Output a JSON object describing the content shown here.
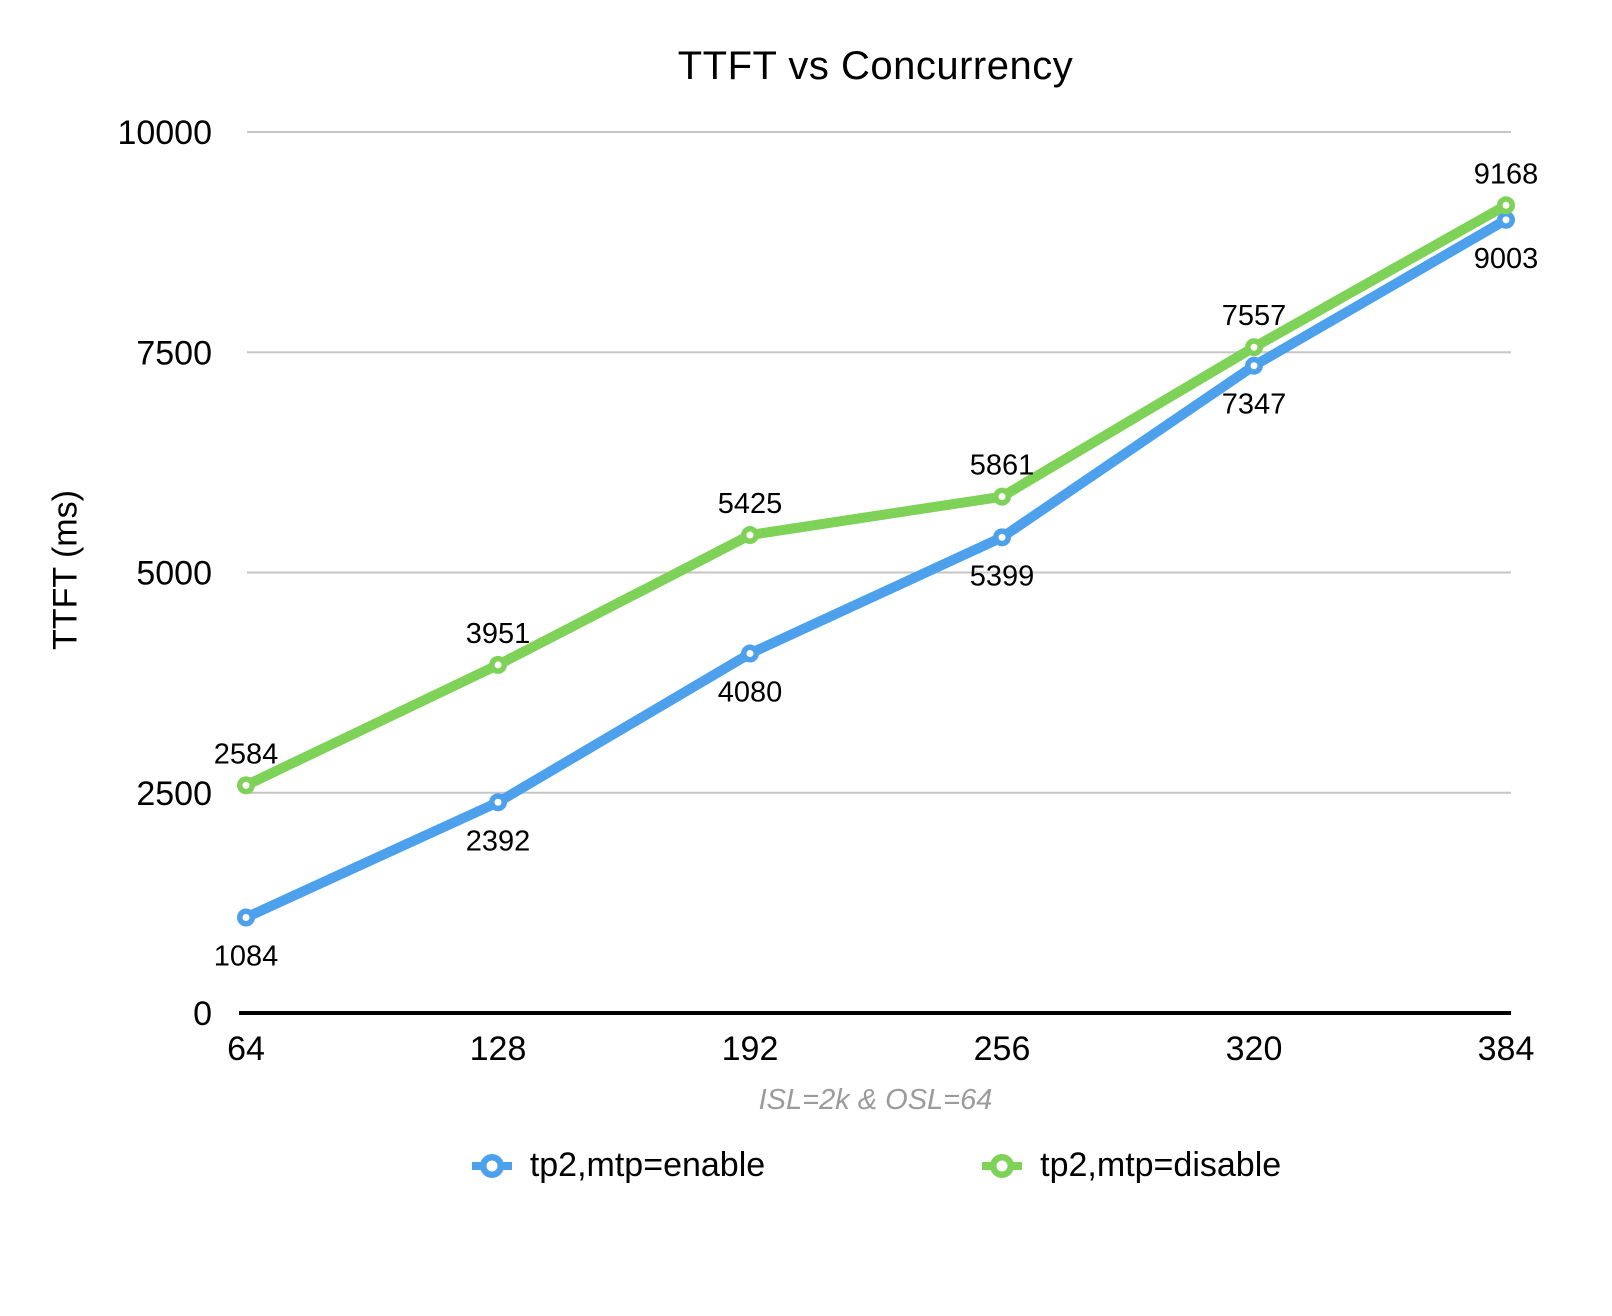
{
  "chart_data": {
    "type": "line",
    "title": "TTFT vs Concurrency",
    "subtitle": "ISL=2k & OSL=64",
    "ylabel": "TTFT (ms)",
    "xlabel": "",
    "categories": [
      "64",
      "128",
      "192",
      "256",
      "320",
      "384"
    ],
    "series": [
      {
        "name": "tp2,mtp=enable",
        "color": "#4DA1EC",
        "values": [
          1084,
          2392,
          4080,
          5399,
          7347,
          9003
        ],
        "label_position": "below"
      },
      {
        "name": "tp2,mtp=disable",
        "color": "#7DD257",
        "values": [
          2584,
          3951,
          5425,
          5861,
          7557,
          9168
        ],
        "label_position": "above"
      }
    ],
    "ylim": [
      0,
      10000
    ],
    "yticks": [
      0,
      2500,
      5000,
      7500,
      10000
    ],
    "grid": true,
    "legend_position": "bottom",
    "palette": {
      "grid": "#C6C6C6",
      "axis": "#000000",
      "text": "#000000",
      "subtitle": "#9B9B9B",
      "background": "#FFFFFF",
      "marker_hole": "#FFFFFF"
    }
  }
}
